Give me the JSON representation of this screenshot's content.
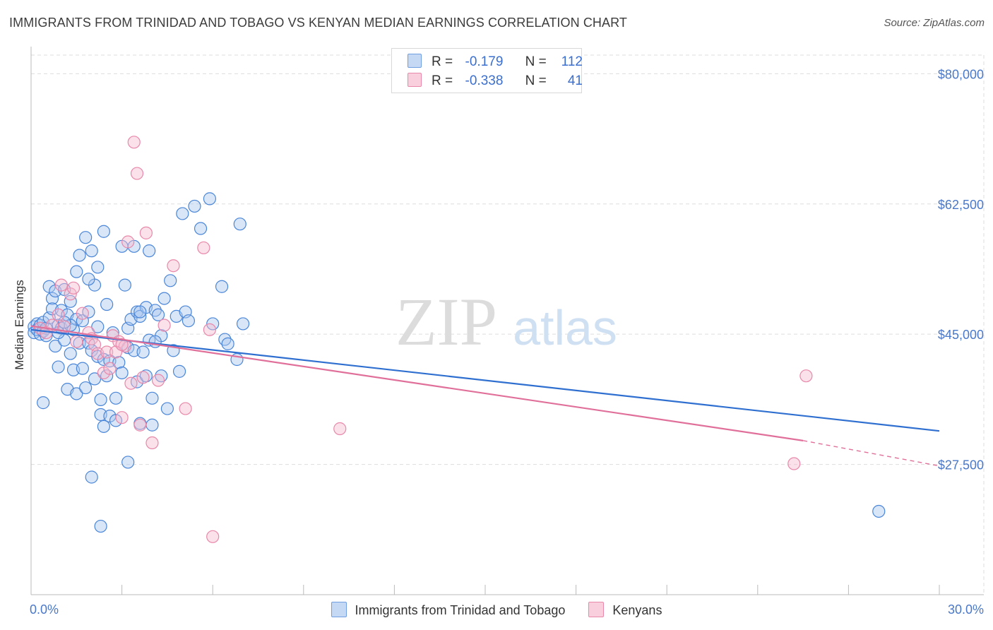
{
  "title": "IMMIGRANTS FROM TRINIDAD AND TOBAGO VS KENYAN MEDIAN EARNINGS CORRELATION CHART",
  "source": "Source: ZipAtlas.com",
  "watermark": {
    "zip": "ZIP",
    "atlas": "atlas"
  },
  "legend": {
    "rows": [
      {
        "r_label": "R =",
        "r_value": "-0.179",
        "n_label": "N =",
        "n_value": "112"
      },
      {
        "r_label": "R =",
        "r_value": "-0.338",
        "n_label": "N =",
        "n_value": "41"
      }
    ]
  },
  "colors": {
    "blue_fill": "#aac8f0",
    "blue_stroke": "#4a86d8",
    "blue_line": "#2f6fd0",
    "pink_fill": "#f5bcd0",
    "pink_stroke": "#e888aa",
    "pink_line": "#e0709a",
    "tick": "#4a78c9",
    "grid": "#dddddd"
  },
  "chart_data": {
    "type": "scatter",
    "title": "IMMIGRANTS FROM TRINIDAD AND TOBAGO VS KENYAN MEDIAN EARNINGS CORRELATION CHART",
    "xlabel": "",
    "ylabel": "Median Earnings",
    "xlim": [
      0,
      30
    ],
    "ylim": [
      10000,
      82500
    ],
    "x_tick_labels": [
      "0.0%",
      "30.0%"
    ],
    "y_ticks": [
      27500,
      45000,
      62500,
      80000
    ],
    "y_tick_labels": [
      "$27,500",
      "$45,000",
      "$62,500",
      "$80,000"
    ],
    "grid": true,
    "series": [
      {
        "name": "Immigrants from Trinidad and Tobago",
        "color": "blue",
        "trend": {
          "x0": 0,
          "y0": 45600,
          "x1": 30,
          "y1": 32000
        },
        "points": [
          [
            0.1,
            46000
          ],
          [
            0.1,
            45200
          ],
          [
            0.2,
            46400
          ],
          [
            0.2,
            45600
          ],
          [
            0.3,
            45000
          ],
          [
            0.3,
            46200
          ],
          [
            0.4,
            45400
          ],
          [
            0.4,
            46600
          ],
          [
            0.5,
            45800
          ],
          [
            0.5,
            44800
          ],
          [
            0.6,
            51400
          ],
          [
            0.6,
            47200
          ],
          [
            0.7,
            49800
          ],
          [
            0.7,
            48400
          ],
          [
            0.8,
            50800
          ],
          [
            0.8,
            43400
          ],
          [
            0.9,
            40600
          ],
          [
            0.9,
            46200
          ],
          [
            1.0,
            45800
          ],
          [
            1.0,
            48200
          ],
          [
            1.1,
            51000
          ],
          [
            1.1,
            44200
          ],
          [
            1.2,
            47600
          ],
          [
            1.2,
            37600
          ],
          [
            1.3,
            42400
          ],
          [
            1.3,
            49400
          ],
          [
            1.4,
            45600
          ],
          [
            1.4,
            40200
          ],
          [
            1.5,
            53400
          ],
          [
            1.5,
            47000
          ],
          [
            1.5,
            37000
          ],
          [
            1.6,
            55600
          ],
          [
            1.6,
            43800
          ],
          [
            1.7,
            46800
          ],
          [
            1.7,
            40400
          ],
          [
            1.8,
            58000
          ],
          [
            1.8,
            37800
          ],
          [
            1.9,
            48000
          ],
          [
            1.9,
            43800
          ],
          [
            2.0,
            56200
          ],
          [
            2.0,
            42800
          ],
          [
            2.1,
            51600
          ],
          [
            2.1,
            39000
          ],
          [
            2.2,
            54000
          ],
          [
            2.2,
            42000
          ],
          [
            2.3,
            36200
          ],
          [
            2.3,
            34200
          ],
          [
            2.4,
            41600
          ],
          [
            2.4,
            32600
          ],
          [
            2.5,
            49000
          ],
          [
            2.5,
            39400
          ],
          [
            2.6,
            34000
          ],
          [
            2.6,
            41400
          ],
          [
            2.7,
            45200
          ],
          [
            2.8,
            36400
          ],
          [
            2.8,
            33400
          ],
          [
            2.9,
            41200
          ],
          [
            3.0,
            56800
          ],
          [
            3.0,
            39800
          ],
          [
            3.1,
            51600
          ],
          [
            3.2,
            45800
          ],
          [
            3.2,
            43200
          ],
          [
            3.3,
            47000
          ],
          [
            3.4,
            56800
          ],
          [
            3.4,
            42800
          ],
          [
            3.5,
            48000
          ],
          [
            3.5,
            38600
          ],
          [
            3.6,
            47400
          ],
          [
            3.6,
            33000
          ],
          [
            3.7,
            42600
          ],
          [
            3.8,
            48600
          ],
          [
            3.8,
            39400
          ],
          [
            3.9,
            44200
          ],
          [
            4.0,
            36400
          ],
          [
            4.0,
            32800
          ],
          [
            4.1,
            48200
          ],
          [
            4.2,
            47600
          ],
          [
            4.3,
            44800
          ],
          [
            4.3,
            39400
          ],
          [
            4.4,
            49800
          ],
          [
            4.5,
            35000
          ],
          [
            4.6,
            52200
          ],
          [
            4.7,
            42800
          ],
          [
            4.8,
            47400
          ],
          [
            4.9,
            40000
          ],
          [
            5.0,
            61200
          ],
          [
            5.1,
            48000
          ],
          [
            5.2,
            46800
          ],
          [
            5.4,
            62200
          ],
          [
            5.6,
            59200
          ],
          [
            5.9,
            63200
          ],
          [
            6.0,
            46400
          ],
          [
            6.3,
            51400
          ],
          [
            6.4,
            44300
          ],
          [
            6.5,
            43700
          ],
          [
            0.4,
            35800
          ],
          [
            2.0,
            25800
          ],
          [
            3.2,
            27800
          ],
          [
            2.3,
            19200
          ],
          [
            6.8,
            41600
          ],
          [
            28.0,
            21200
          ],
          [
            6.9,
            59800
          ],
          [
            7.0,
            46400
          ],
          [
            4.1,
            44000
          ],
          [
            1.9,
            52400
          ],
          [
            2.4,
            58800
          ],
          [
            3.9,
            56200
          ],
          [
            1.3,
            46200
          ],
          [
            2.2,
            46000
          ],
          [
            3.6,
            48000
          ],
          [
            1.1,
            46600
          ],
          [
            0.9,
            45200
          ]
        ]
      },
      {
        "name": "Kenyans",
        "color": "pink",
        "trend": {
          "x0": 0,
          "y0": 46100,
          "x1": 25.5,
          "y1": 30700,
          "x_dash_end": 30,
          "y_dash_end": 27300
        },
        "points": [
          [
            0.3,
            45800
          ],
          [
            0.5,
            45200
          ],
          [
            0.7,
            46200
          ],
          [
            0.9,
            47600
          ],
          [
            1.0,
            51600
          ],
          [
            1.1,
            46000
          ],
          [
            1.3,
            50400
          ],
          [
            1.4,
            51200
          ],
          [
            1.5,
            44000
          ],
          [
            1.7,
            47800
          ],
          [
            1.9,
            45200
          ],
          [
            2.0,
            44400
          ],
          [
            2.1,
            43600
          ],
          [
            2.2,
            42400
          ],
          [
            2.4,
            39800
          ],
          [
            2.5,
            42600
          ],
          [
            2.6,
            40400
          ],
          [
            2.7,
            44800
          ],
          [
            2.9,
            44000
          ],
          [
            3.0,
            33800
          ],
          [
            3.1,
            43400
          ],
          [
            3.2,
            57400
          ],
          [
            3.3,
            38400
          ],
          [
            3.4,
            70800
          ],
          [
            3.5,
            66600
          ],
          [
            3.6,
            32800
          ],
          [
            3.7,
            39200
          ],
          [
            3.8,
            58600
          ],
          [
            4.0,
            30400
          ],
          [
            4.2,
            38800
          ],
          [
            4.4,
            46200
          ],
          [
            4.7,
            54200
          ],
          [
            5.1,
            35000
          ],
          [
            5.7,
            56600
          ],
          [
            5.9,
            45600
          ],
          [
            6.0,
            17800
          ],
          [
            10.2,
            32300
          ],
          [
            25.2,
            27600
          ],
          [
            25.6,
            39400
          ],
          [
            2.8,
            42600
          ],
          [
            3.0,
            43600
          ]
        ]
      }
    ]
  },
  "bottom_legend": [
    "Immigrants from Trinidad and Tobago",
    "Kenyans"
  ]
}
